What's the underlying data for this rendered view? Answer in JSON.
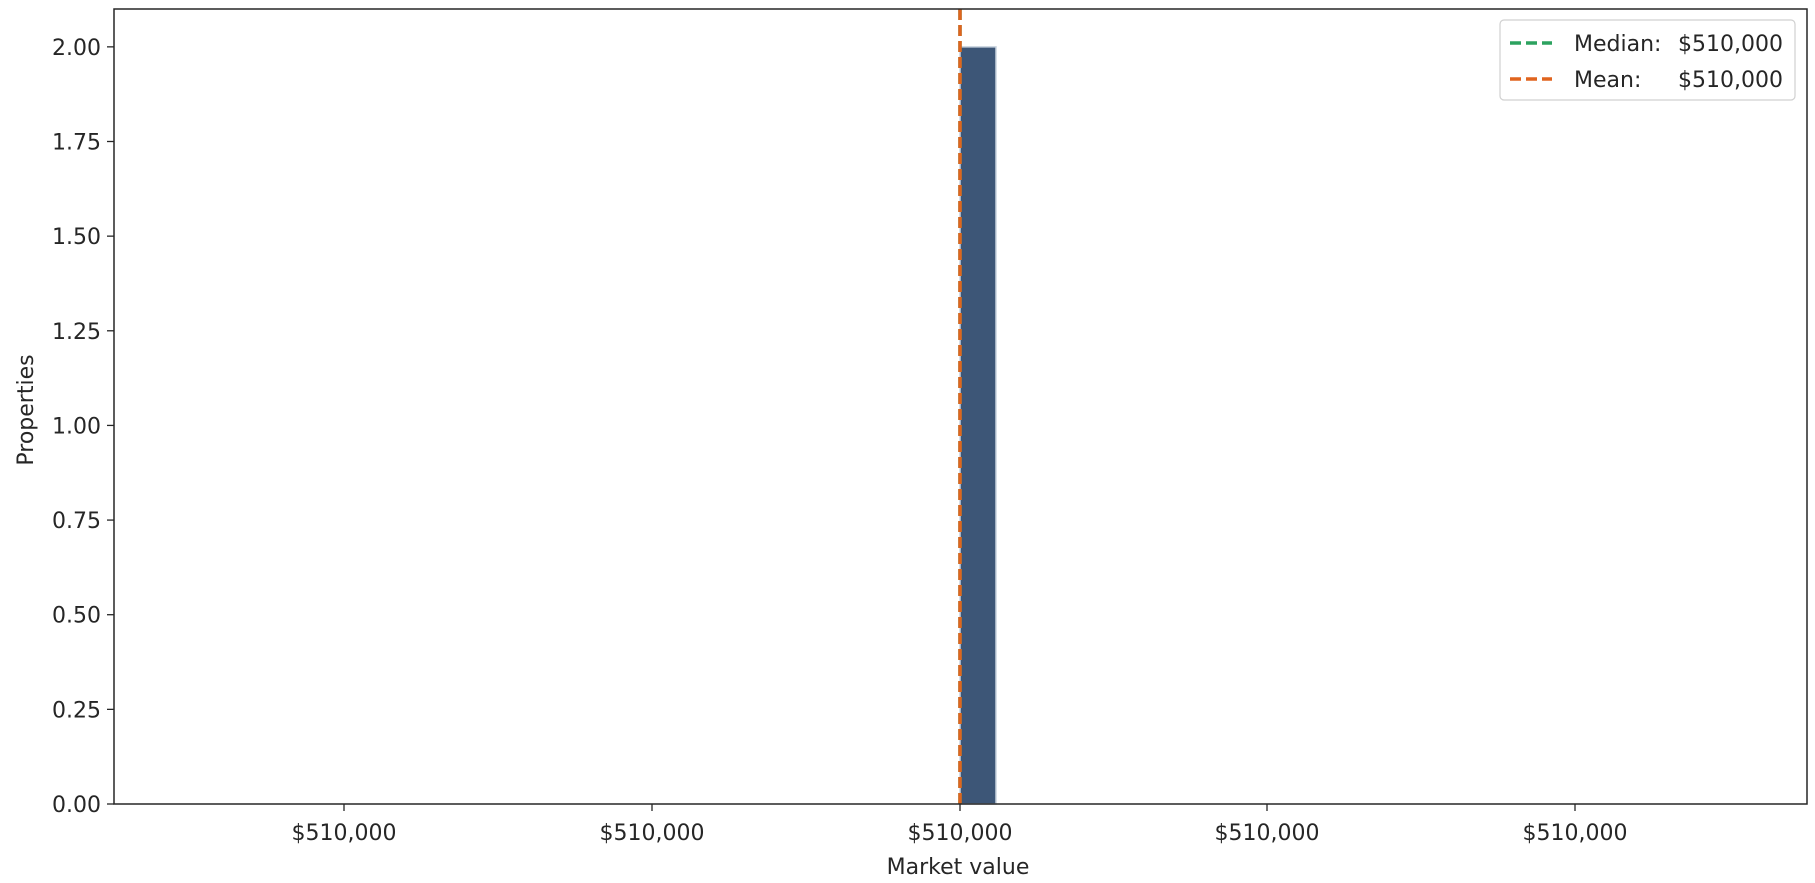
{
  "chart_data": {
    "type": "bar",
    "title": "",
    "xlabel": "Market value",
    "ylabel": "Properties",
    "ylim": [
      0,
      2.1
    ],
    "y_ticks": [
      0,
      0.25,
      0.5,
      0.75,
      1.0,
      1.25,
      1.5,
      1.75,
      2.0
    ],
    "y_tick_labels": [
      "0.00",
      "0.25",
      "0.50",
      "0.75",
      "1.00",
      "1.25",
      "1.50",
      "1.75",
      "2.00"
    ],
    "x_tick_labels": [
      "$510,000",
      "$510,000",
      "$510,000",
      "$510,000",
      "$510,000"
    ],
    "bars": [
      {
        "bin_start": 510000,
        "count": 2
      }
    ],
    "reference_lines": [
      {
        "name": "Median",
        "value": 510000,
        "color": "#2ca25f",
        "style": "dashed"
      },
      {
        "name": "Mean",
        "value": 510000,
        "color": "#e0641e",
        "style": "dashed"
      }
    ],
    "bar_color": "#3d5677",
    "grid": false,
    "legend": {
      "position": "top-right",
      "entries": [
        {
          "key": "Median:",
          "value": "$510,000",
          "color": "#2ca25f"
        },
        {
          "key": "Mean:",
          "value": "$510,000",
          "color": "#e0641e"
        }
      ]
    }
  }
}
